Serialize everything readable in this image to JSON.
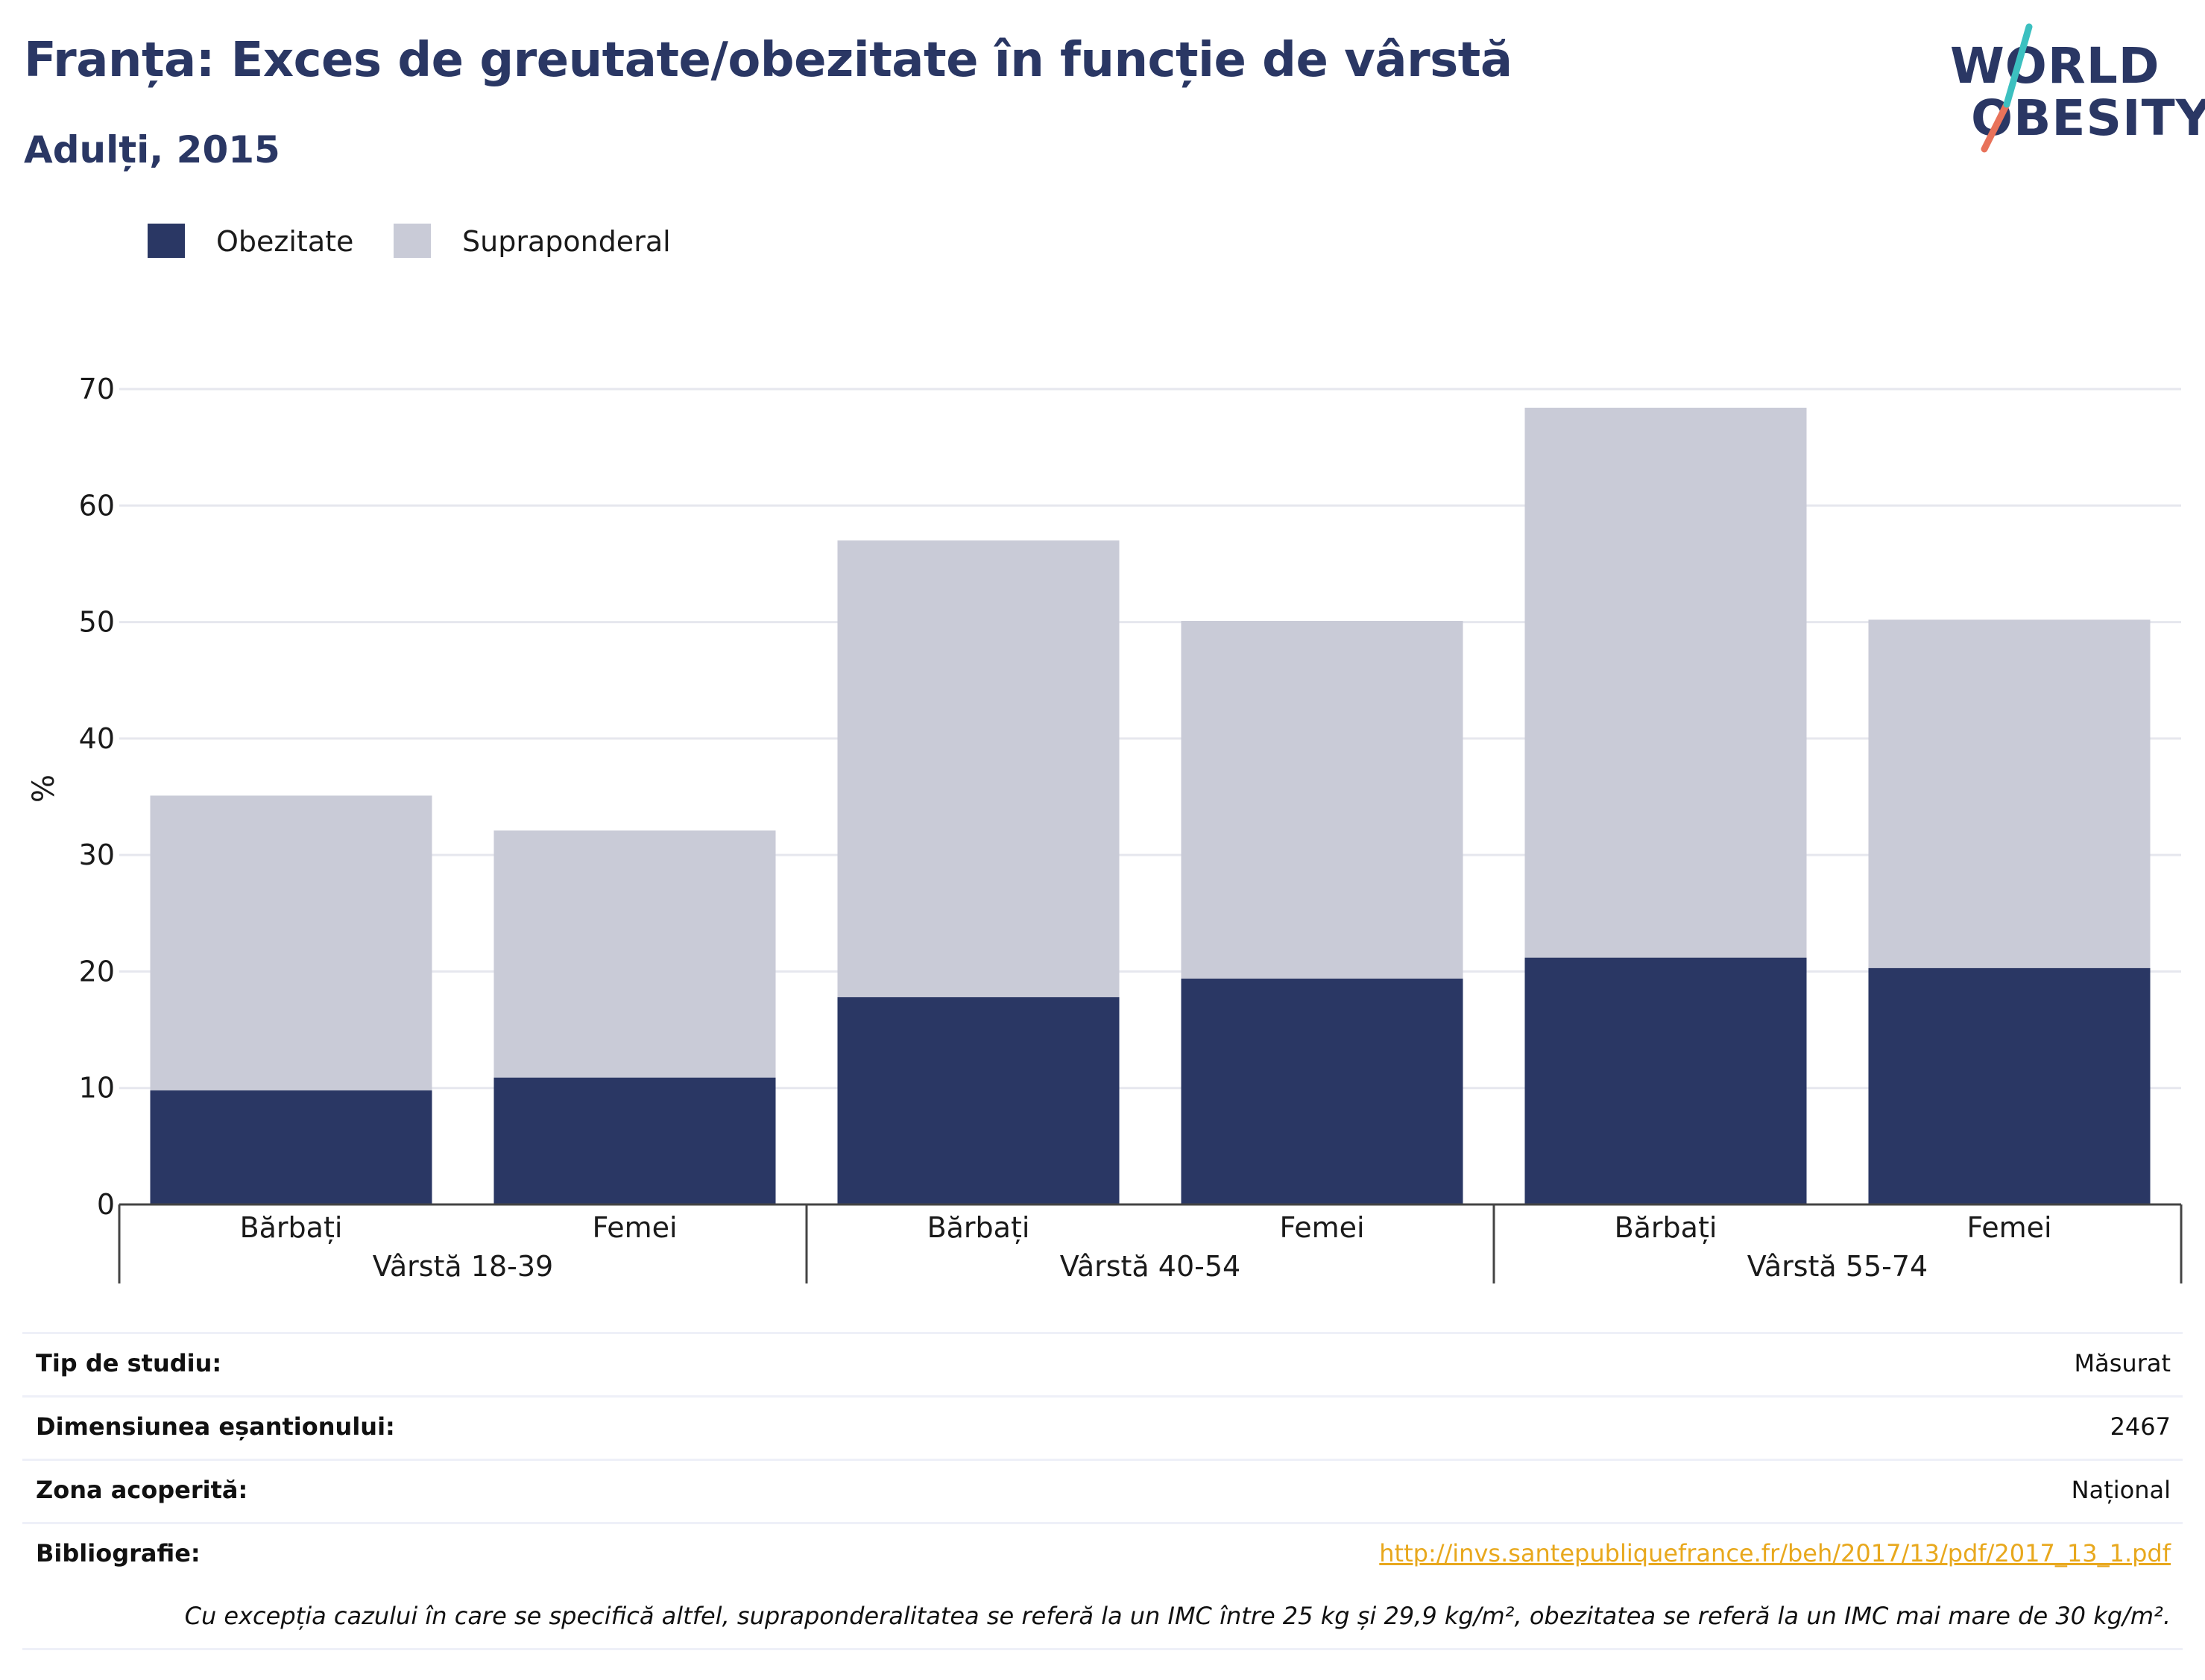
{
  "header": {
    "title": "Franța: Exces de greutate/obezitate în funcție de vârstă",
    "subtitle": "Adulți, 2015"
  },
  "logo": {
    "line1": "WORLD",
    "line2": "OBESITY",
    "colors": {
      "text": "#2a3764",
      "slash_top": "#3cc0c0",
      "slash_bottom": "#e8725a"
    }
  },
  "colors": {
    "obesity": "#2a3764",
    "overweight": "#c9cbd7",
    "grid": "#e6e7ee",
    "axis": "#444444",
    "link": "#e8a81d"
  },
  "chart_data": {
    "type": "bar",
    "stacked": true,
    "ylabel": "%",
    "ylim": [
      0,
      70
    ],
    "yticks": [
      0,
      10,
      20,
      30,
      40,
      50,
      60,
      70
    ],
    "grid": true,
    "legend_placement": "top-left",
    "groups": [
      "Vârstă 18-39",
      "Vârstă 40-54",
      "Vârstă 55-74"
    ],
    "categories": [
      "Bărbați",
      "Femei",
      "Bărbați",
      "Femei",
      "Bărbați",
      "Femei"
    ],
    "series": [
      {
        "name": "Obezitate",
        "values": [
          9.8,
          10.9,
          17.8,
          19.4,
          21.2,
          20.3
        ]
      },
      {
        "name": "Supraponderal",
        "values": [
          25.3,
          21.2,
          39.2,
          30.7,
          47.2,
          29.9
        ]
      }
    ]
  },
  "info": {
    "rows": [
      {
        "label": "Tip de studiu:",
        "value": "Măsurat"
      },
      {
        "label": "Dimensiunea eșantionului:",
        "value": "2467"
      },
      {
        "label": "Zona acoperită:",
        "value": "Național"
      },
      {
        "label": "Bibliografie:",
        "value": "http://invs.santepubliquefrance.fr/beh/2017/13/pdf/2017_13_1.pdf"
      }
    ],
    "note": "Cu excepția cazului în care se specifică altfel, supraponderalitatea se referă la un IMC între 25 kg și 29,9 kg/m², obezitatea se referă la un IMC mai mare de 30 kg/m²."
  }
}
